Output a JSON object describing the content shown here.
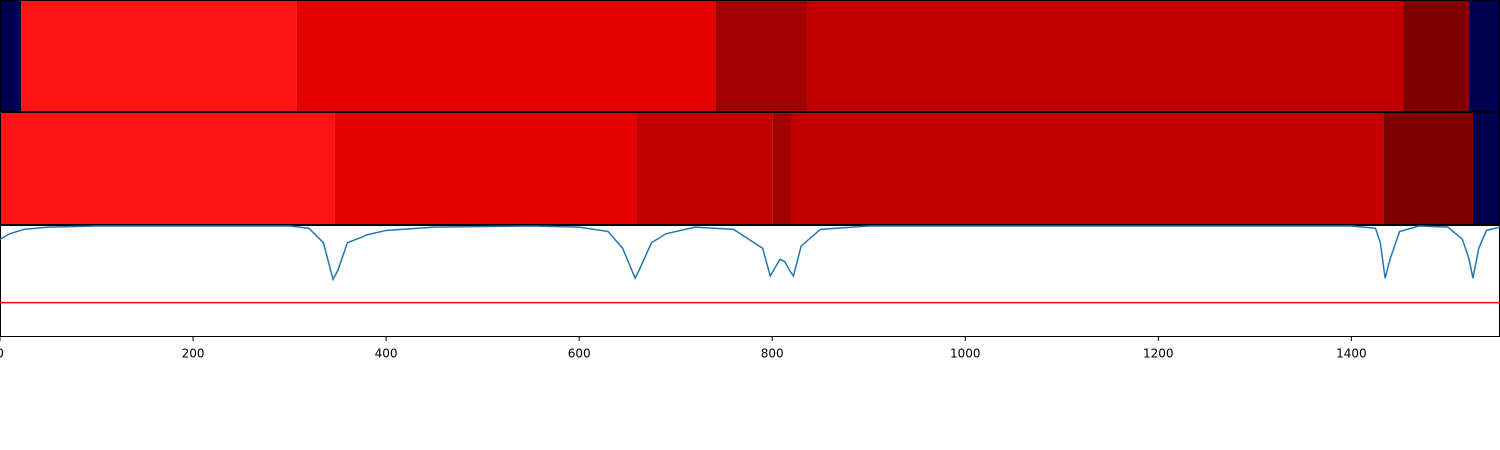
{
  "chart_data": {
    "type": "segmentation",
    "xlim": [
      0,
      1554
    ],
    "xticks": [
      0,
      200,
      400,
      600,
      800,
      1000,
      1200,
      1400
    ],
    "bars": [
      {
        "edges": [
          0,
          22,
          307,
          741,
          836,
          1454,
          1522,
          1554
        ],
        "colors": [
          "#000050",
          "#ff1414",
          "#e50000",
          "#a00000",
          "#c20000",
          "#800000",
          "#000050"
        ]
      },
      {
        "edges": [
          0,
          347,
          659,
          800,
          820,
          1433,
          1526,
          1554
        ],
        "colors": [
          "#ff1414",
          "#e50000",
          "#c20000",
          "#a00000",
          "#c20000",
          "#800000",
          "#000050"
        ]
      }
    ],
    "ylim": [
      0,
      1
    ],
    "series": [
      {
        "color": "#1f77b4",
        "x": [
          0,
          10,
          25,
          50,
          100,
          300,
          320,
          335,
          345,
          350,
          360,
          375,
          380,
          400,
          450,
          550,
          600,
          630,
          645,
          658,
          662,
          675,
          690,
          720,
          760,
          790,
          798,
          808,
          813,
          818,
          822,
          830,
          850,
          900,
          1400,
          1425,
          1430,
          1435,
          1440,
          1450,
          1470,
          1500,
          1515,
          1522,
          1526,
          1532,
          1540,
          1554
        ],
        "values": [
          0.88,
          0.93,
          0.97,
          0.99,
          1,
          1,
          0.98,
          0.85,
          0.52,
          0.6,
          0.85,
          0.9,
          0.92,
          0.96,
          0.99,
          1,
          0.99,
          0.95,
          0.8,
          0.53,
          0.6,
          0.85,
          0.93,
          0.99,
          0.97,
          0.8,
          0.55,
          0.7,
          0.68,
          0.6,
          0.55,
          0.82,
          0.97,
          1,
          1,
          0.98,
          0.85,
          0.53,
          0.7,
          0.95,
          1,
          0.99,
          0.88,
          0.7,
          0.53,
          0.8,
          0.96,
          0.99
        ]
      }
    ],
    "threshold": {
      "value": 0.31,
      "color": "#ff0000"
    }
  }
}
